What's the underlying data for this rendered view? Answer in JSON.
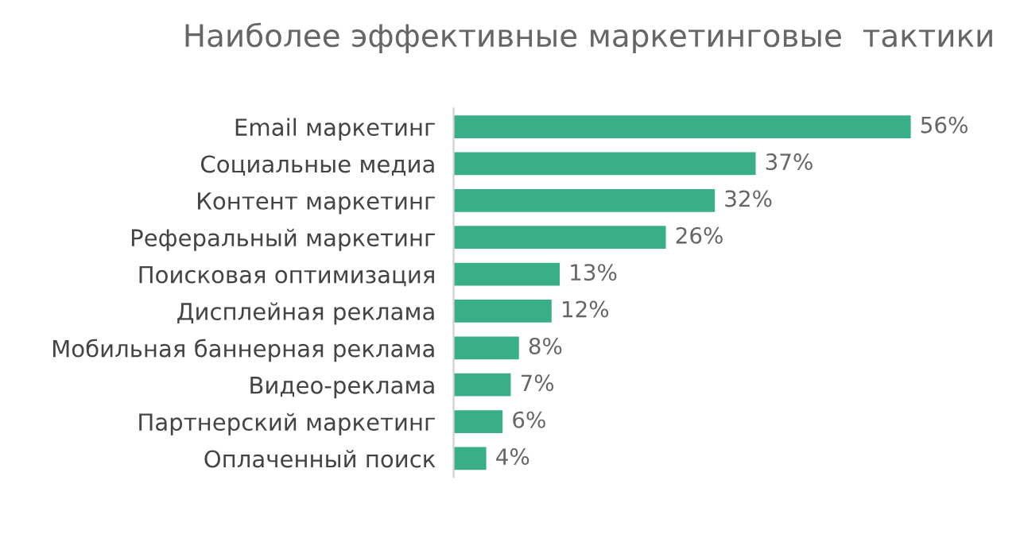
{
  "chart_data": {
    "type": "bar",
    "orientation": "horizontal",
    "title": "Наиболее эффективные маркетинговые  тактики",
    "categories": [
      "Email маркетинг",
      "Социальные медиа",
      "Контент маркетинг",
      "Реферальный маркетинг",
      "Поисковая оптимизация",
      "Дисплейная реклама",
      "Мобильная баннерная реклама",
      "Видео-реклама",
      "Партнерский маркетинг",
      "Оплаченный поиск"
    ],
    "values": [
      56,
      37,
      32,
      26,
      13,
      12,
      8,
      7,
      6,
      4
    ],
    "value_labels": [
      "56%",
      "37%",
      "32%",
      "26%",
      "13%",
      "12%",
      "8%",
      "7%",
      "6%",
      "4%"
    ],
    "color": "#3aaf85",
    "grid": false,
    "legend": false
  }
}
